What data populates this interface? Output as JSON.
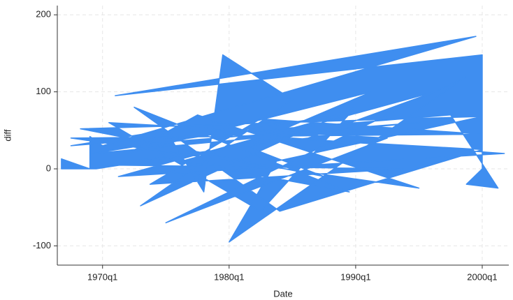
{
  "chart_data": {
    "type": "area",
    "xlabel": "Date",
    "ylabel": "diff",
    "x": [
      27,
      36,
      36,
      40,
      158,
      44,
      160,
      160,
      155,
      165,
      150,
      30,
      60,
      72,
      78,
      100,
      52,
      120,
      90,
      42,
      130,
      60,
      155,
      80,
      95,
      160,
      33,
      110,
      85,
      125,
      48,
      70,
      140,
      30,
      160,
      90,
      55,
      135,
      40,
      105,
      145,
      65,
      118,
      50,
      96,
      160,
      75,
      37,
      140,
      60,
      115,
      45,
      167,
      100,
      38
    ],
    "values": [
      13,
      0,
      42,
      30,
      172,
      95,
      148,
      0,
      -20,
      -25,
      70,
      30,
      50,
      -30,
      148,
      90,
      -48,
      80,
      -55,
      60,
      40,
      -70,
      120,
      -95,
      10,
      68,
      52,
      -10,
      30,
      100,
      20,
      70,
      -25,
      40,
      45,
      65,
      -20,
      0,
      5,
      40,
      100,
      10,
      -30,
      80,
      -55,
      25,
      45,
      20,
      60,
      35,
      70,
      -10,
      20,
      40,
      0
    ],
    "color": "#3f8ef0",
    "xlim": [
      25.7,
      168.4
    ],
    "ylim": [
      -125,
      212
    ],
    "xticks": [
      {
        "value": 40,
        "label": "1970q1"
      },
      {
        "value": 80,
        "label": "1980q1"
      },
      {
        "value": 120,
        "label": "1990q1"
      },
      {
        "value": 160,
        "label": "2000q1"
      }
    ],
    "yticks": [
      -100,
      0,
      100,
      200
    ],
    "grid": true
  }
}
